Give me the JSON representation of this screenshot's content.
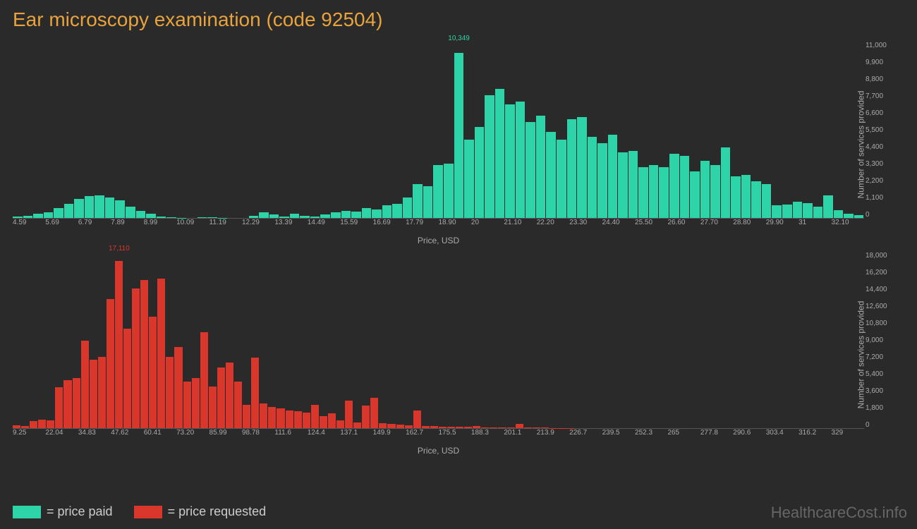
{
  "title": "Ear microscopy examination (code 92504)",
  "watermark": "HealthcareCost.info",
  "legend": {
    "paid": {
      "label": "= price paid",
      "color": "#2dd4a7"
    },
    "requested": {
      "label": "= price requested",
      "color": "#d9372c"
    }
  },
  "chart_paid": {
    "type": "histogram",
    "bar_color": "#2dd4a7",
    "peak_color": "#2dd4a7",
    "background": "#2a2a2a",
    "x_label": "Price, USD",
    "y_label": "Number of services provided",
    "x_ticks": [
      "4.59",
      "5.69",
      "6.79",
      "7.89",
      "8.99",
      "10.09",
      "11.19",
      "12.29",
      "13.39",
      "14.49",
      "15.59",
      "16.69",
      "17.79",
      "18.90",
      "20",
      "21.10",
      "22.20",
      "23.30",
      "24.40",
      "25.50",
      "26.60",
      "27.70",
      "28.80",
      "29.90",
      "31",
      "32.10"
    ],
    "y_ticks": [
      "0",
      "1,100",
      "2,200",
      "3,300",
      "4,400",
      "5,500",
      "6,600",
      "7,700",
      "8,800",
      "9,900",
      "11,000"
    ],
    "y_max": 11000,
    "peak_label": "10,349",
    "peak_index": 43,
    "values": [
      80,
      120,
      260,
      350,
      600,
      900,
      1200,
      1350,
      1400,
      1300,
      1100,
      700,
      450,
      250,
      100,
      50,
      20,
      0,
      60,
      40,
      20,
      0,
      0,
      120,
      350,
      200,
      100,
      280,
      120,
      80,
      200,
      350,
      450,
      400,
      600,
      550,
      800,
      900,
      1300,
      2100,
      2000,
      3300,
      3400,
      10349,
      4900,
      5700,
      7700,
      8100,
      7100,
      7300,
      6000,
      6400,
      5400,
      4900,
      6200,
      6300,
      5100,
      4700,
      5200,
      4100,
      4200,
      3200,
      3300,
      3200,
      4000,
      3900,
      2900,
      3600,
      3300,
      4400,
      2600,
      2700,
      2300,
      2100,
      800,
      850,
      1000,
      950,
      700,
      1400,
      500,
      250,
      180
    ]
  },
  "chart_requested": {
    "type": "histogram",
    "bar_color": "#d9372c",
    "peak_color": "#d9372c",
    "background": "#2a2a2a",
    "x_label": "Price, USD",
    "y_label": "Number of services provided",
    "x_ticks": [
      "9.25",
      "22.04",
      "34.83",
      "47.62",
      "60.41",
      "73.20",
      "85.99",
      "98.78",
      "111.6",
      "124.4",
      "137.1",
      "149.9",
      "162.7",
      "175.5",
      "188.3",
      "201.1",
      "213.9",
      "226.7",
      "239.5",
      "252.3",
      "265",
      "277.8",
      "290.6",
      "303.4",
      "316.2",
      "329"
    ],
    "y_ticks": [
      "0",
      "1,800",
      "3,600",
      "5,400",
      "7,200",
      "9,000",
      "10,800",
      "12,600",
      "14,400",
      "16,200",
      "18,000"
    ],
    "y_max": 18000,
    "peak_label": "17,110",
    "peak_index": 12,
    "values": [
      300,
      250,
      700,
      900,
      800,
      4200,
      4900,
      5100,
      9000,
      7000,
      7300,
      13200,
      17110,
      10200,
      14300,
      15200,
      11400,
      15300,
      7300,
      8300,
      4800,
      5100,
      9800,
      4300,
      6200,
      6700,
      4800,
      2400,
      7200,
      2500,
      2200,
      2000,
      1800,
      1700,
      1600,
      2400,
      1200,
      1500,
      800,
      2800,
      600,
      2300,
      3100,
      500,
      400,
      350,
      300,
      1800,
      250,
      200,
      180,
      160,
      140,
      120,
      250,
      100,
      90,
      80,
      70,
      400,
      60,
      50,
      40,
      30,
      20,
      10,
      5,
      5,
      5,
      5,
      5,
      5,
      5,
      5,
      5,
      5,
      5,
      5,
      5,
      5,
      5,
      5,
      5,
      5,
      5,
      5,
      5,
      5,
      5,
      5,
      5,
      5,
      5,
      5,
      5,
      5,
      5,
      5,
      5,
      5
    ]
  }
}
